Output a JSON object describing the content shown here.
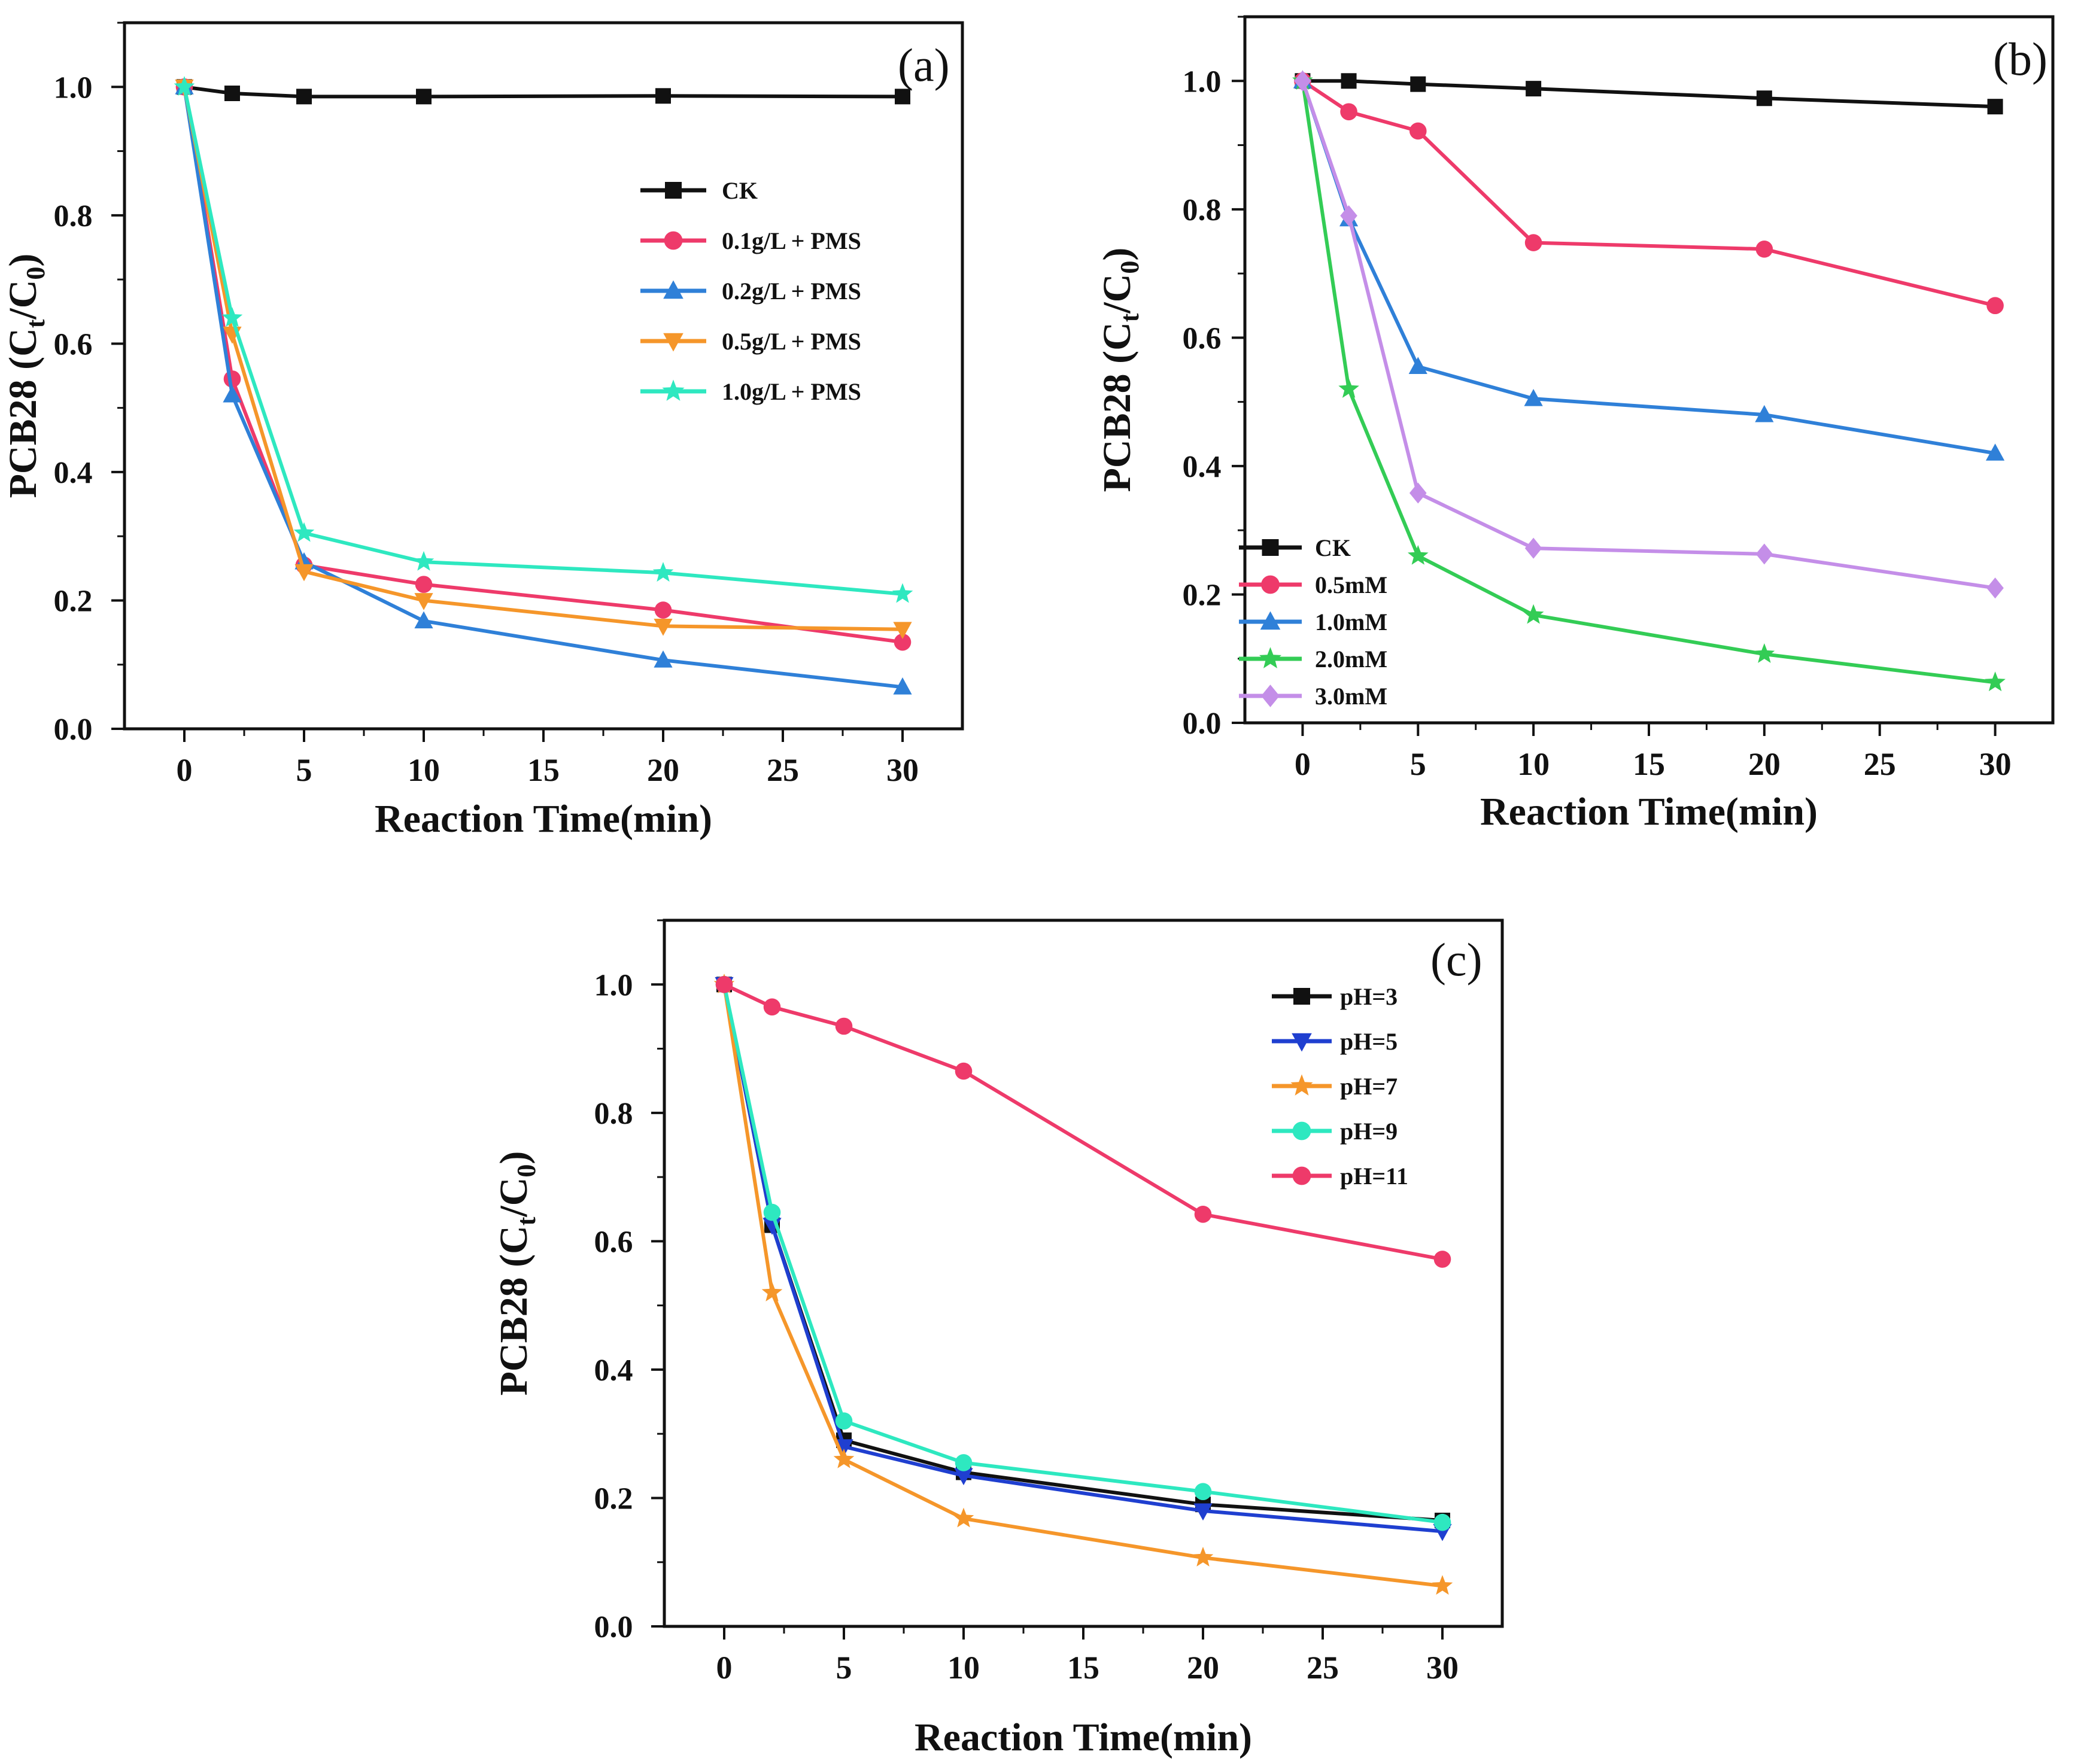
{
  "chart_data": [
    {
      "type": "line",
      "panel_label": "(a)",
      "xlabel": "Reaction Time(min)",
      "ylabel_main": "PCB28 (C",
      "ylabel_sub1": "t",
      "ylabel_mid": "/C",
      "ylabel_sub2": "0",
      "ylabel_end": ")",
      "xlim": [
        -2.5,
        32.5
      ],
      "ylim": [
        0,
        1.1
      ],
      "x_ticks": [
        0,
        5,
        10,
        15,
        20,
        25,
        30
      ],
      "y_ticks": [
        0.0,
        0.2,
        0.4,
        0.6,
        0.8,
        1.0
      ],
      "y_tick_labels": [
        "0.0",
        "0.2",
        "0.4",
        "0.6",
        "0.8",
        "1.0"
      ],
      "legend_position": "top-right",
      "x": [
        0,
        2,
        5,
        10,
        20,
        30
      ],
      "series": [
        {
          "name": "CK",
          "color": "#111111",
          "marker": "square",
          "values": [
            1.0,
            0.99,
            0.985,
            0.985,
            0.986,
            0.985
          ]
        },
        {
          "name": "0.1g/L + PMS",
          "color": "#ee3a6a",
          "marker": "circle",
          "values": [
            1.0,
            0.545,
            0.255,
            0.225,
            0.185,
            0.135
          ]
        },
        {
          "name": "0.2g/L + PMS",
          "color": "#2f80d8",
          "marker": "triangle-up",
          "values": [
            1.0,
            0.52,
            0.26,
            0.168,
            0.107,
            0.065
          ]
        },
        {
          "name": "0.5g/L + PMS",
          "color": "#f5962a",
          "marker": "triangle-down",
          "values": [
            1.0,
            0.615,
            0.245,
            0.2,
            0.16,
            0.155
          ]
        },
        {
          "name": "1.0g/L + PMS",
          "color": "#2ee8c0",
          "marker": "star",
          "values": [
            1.0,
            0.64,
            0.305,
            0.26,
            0.243,
            0.21
          ]
        }
      ]
    },
    {
      "type": "line",
      "panel_label": "(b)",
      "xlabel": "Reaction Time(min)",
      "ylabel_main": "PCB28 (C",
      "ylabel_sub1": "t",
      "ylabel_mid": "/C",
      "ylabel_sub2": "0",
      "ylabel_end": ")",
      "xlim": [
        -2.5,
        32.5
      ],
      "ylim": [
        0,
        1.1
      ],
      "x_ticks": [
        0,
        5,
        10,
        15,
        20,
        25,
        30
      ],
      "y_ticks": [
        0.0,
        0.2,
        0.4,
        0.6,
        0.8,
        1.0
      ],
      "y_tick_labels": [
        "0.0",
        "0.2",
        "0.4",
        "0.6",
        "0.8",
        "1.0"
      ],
      "legend_position": "bottom-left",
      "x": [
        0,
        2,
        5,
        10,
        20,
        30
      ],
      "series": [
        {
          "name": "CK",
          "color": "#111111",
          "marker": "square",
          "values": [
            1.0,
            1.0,
            0.995,
            0.988,
            0.973,
            0.96
          ]
        },
        {
          "name": "0.5mM",
          "color": "#ee3a6a",
          "marker": "circle",
          "values": [
            1.0,
            0.952,
            0.922,
            0.748,
            0.738,
            0.65
          ]
        },
        {
          "name": "1.0mM",
          "color": "#2f80d8",
          "marker": "triangle-up",
          "values": [
            1.0,
            0.785,
            0.555,
            0.505,
            0.48,
            0.42
          ]
        },
        {
          "name": "2.0mM",
          "color": "#33cc55",
          "marker": "star",
          "values": [
            1.0,
            0.52,
            0.26,
            0.168,
            0.107,
            0.063
          ]
        },
        {
          "name": "3.0mM",
          "color": "#c48ee8",
          "marker": "diamond",
          "values": [
            1.0,
            0.79,
            0.358,
            0.272,
            0.263,
            0.21
          ]
        }
      ]
    },
    {
      "type": "line",
      "panel_label": "(c)",
      "xlabel": "Reaction Time(min)",
      "ylabel_main": "PCB28 (C",
      "ylabel_sub1": "t",
      "ylabel_mid": "/C",
      "ylabel_sub2": "0",
      "ylabel_end": ")",
      "xlim": [
        -2.5,
        32.5
      ],
      "ylim": [
        0,
        1.1
      ],
      "x_ticks": [
        0,
        5,
        10,
        15,
        20,
        25,
        30
      ],
      "y_ticks": [
        0.0,
        0.2,
        0.4,
        0.6,
        0.8,
        1.0
      ],
      "y_tick_labels": [
        "0.0",
        "0.2",
        "0.4",
        "0.6",
        "0.8",
        "1.0"
      ],
      "legend_position": "top-right",
      "x": [
        0,
        2,
        5,
        10,
        20,
        30
      ],
      "series": [
        {
          "name": "pH=3",
          "color": "#111111",
          "marker": "square",
          "values": [
            1.0,
            0.625,
            0.29,
            0.24,
            0.19,
            0.165
          ]
        },
        {
          "name": "pH=5",
          "color": "#1f3fd0",
          "marker": "triangle-down",
          "values": [
            1.0,
            0.625,
            0.28,
            0.235,
            0.18,
            0.148
          ]
        },
        {
          "name": "pH=7",
          "color": "#f5962a",
          "marker": "star",
          "values": [
            1.0,
            0.52,
            0.26,
            0.168,
            0.107,
            0.063
          ]
        },
        {
          "name": "pH=9",
          "color": "#2ee8c0",
          "marker": "circle",
          "values": [
            1.0,
            0.645,
            0.32,
            0.255,
            0.21,
            0.162
          ]
        },
        {
          "name": "pH=11",
          "color": "#ee3a6a",
          "marker": "circle",
          "values": [
            1.0,
            0.965,
            0.935,
            0.865,
            0.642,
            0.572
          ]
        }
      ]
    }
  ]
}
